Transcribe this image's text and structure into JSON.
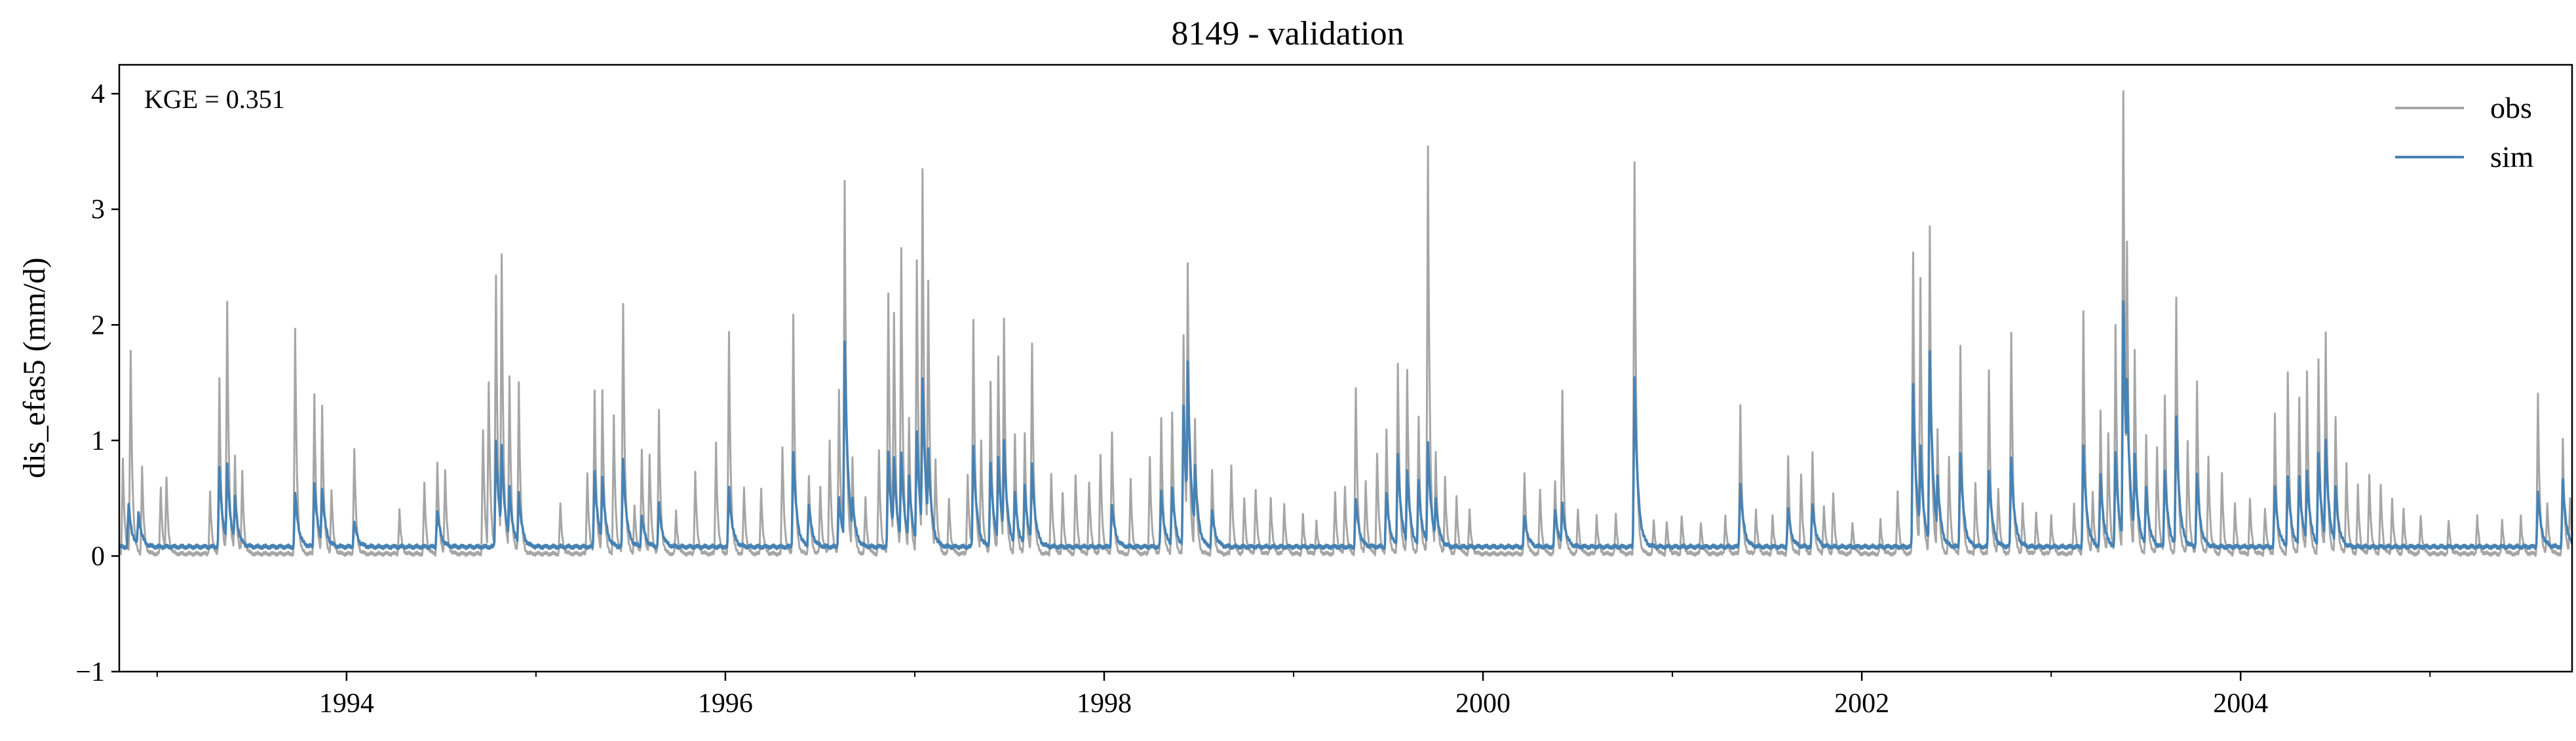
{
  "chart_data": {
    "type": "line",
    "title": "8149 - validation",
    "xlabel": "",
    "ylabel": "dis_efas5 (mm/d)",
    "xlim": [
      1992.8,
      2005.75
    ],
    "ylim": [
      -1,
      4.25
    ],
    "yticks": [
      -1,
      0,
      1,
      2,
      3,
      4
    ],
    "ytick_labels": [
      "−1",
      "0",
      "1",
      "2",
      "3",
      "4"
    ],
    "xticks": [
      1994,
      1996,
      1998,
      2000,
      2002,
      2004
    ],
    "xtick_labels": [
      "1994",
      "1996",
      "1998",
      "2000",
      "2002",
      "2004"
    ],
    "minor_xticks": [
      1993,
      1995,
      1997,
      1999,
      2001,
      2003,
      2005
    ],
    "annotation": "KGE = 0.351",
    "legend": {
      "position": "top-right",
      "entries": [
        "obs",
        "sim"
      ]
    },
    "series": [
      {
        "name": "obs",
        "color": "#a6a6a6",
        "baseline": 0.02,
        "peaks": [
          [
            1992.82,
            0.85
          ],
          [
            1992.86,
            1.78
          ],
          [
            1992.92,
            0.78
          ],
          [
            1993.02,
            0.6
          ],
          [
            1993.05,
            0.68
          ],
          [
            1993.28,
            0.55
          ],
          [
            1993.33,
            1.52
          ],
          [
            1993.37,
            2.18
          ],
          [
            1993.41,
            0.85
          ],
          [
            1993.45,
            0.72
          ],
          [
            1993.73,
            1.97
          ],
          [
            1993.83,
            1.42
          ],
          [
            1993.87,
            1.32
          ],
          [
            1993.92,
            0.58
          ],
          [
            1994.04,
            0.93
          ],
          [
            1994.28,
            0.4
          ],
          [
            1994.41,
            0.62
          ],
          [
            1994.48,
            0.82
          ],
          [
            1994.52,
            0.75
          ],
          [
            1994.72,
            1.1
          ],
          [
            1994.75,
            1.52
          ],
          [
            1994.79,
            2.43
          ],
          [
            1994.82,
            2.6
          ],
          [
            1994.86,
            1.55
          ],
          [
            1994.91,
            1.5
          ],
          [
            1995.13,
            0.45
          ],
          [
            1995.27,
            0.72
          ],
          [
            1995.31,
            1.45
          ],
          [
            1995.35,
            1.45
          ],
          [
            1995.41,
            1.22
          ],
          [
            1995.46,
            2.19
          ],
          [
            1995.52,
            0.45
          ],
          [
            1995.56,
            0.92
          ],
          [
            1995.6,
            0.88
          ],
          [
            1995.65,
            1.25
          ],
          [
            1995.74,
            0.38
          ],
          [
            1995.84,
            0.72
          ],
          [
            1995.95,
            0.98
          ],
          [
            1996.02,
            1.94
          ],
          [
            1996.1,
            0.6
          ],
          [
            1996.19,
            0.6
          ],
          [
            1996.3,
            0.95
          ],
          [
            1996.36,
            2.09
          ],
          [
            1996.44,
            0.7
          ],
          [
            1996.5,
            0.6
          ],
          [
            1996.55,
            1.0
          ],
          [
            1996.6,
            1.43
          ],
          [
            1996.63,
            3.24
          ],
          [
            1996.67,
            0.85
          ],
          [
            1996.74,
            0.5
          ],
          [
            1996.81,
            0.9
          ],
          [
            1996.86,
            2.27
          ],
          [
            1996.89,
            2.1
          ],
          [
            1996.93,
            2.67
          ],
          [
            1996.97,
            1.2
          ],
          [
            1997.01,
            2.56
          ],
          [
            1997.04,
            3.36
          ],
          [
            1997.07,
            2.4
          ],
          [
            1997.11,
            0.85
          ],
          [
            1997.18,
            0.5
          ],
          [
            1997.28,
            0.7
          ],
          [
            1997.31,
            2.04
          ],
          [
            1997.35,
            1.0
          ],
          [
            1997.4,
            1.5
          ],
          [
            1997.44,
            1.72
          ],
          [
            1997.47,
            2.05
          ],
          [
            1997.53,
            1.05
          ],
          [
            1997.58,
            1.05
          ],
          [
            1997.62,
            1.84
          ],
          [
            1997.72,
            0.72
          ],
          [
            1997.78,
            0.55
          ],
          [
            1997.85,
            0.7
          ],
          [
            1997.92,
            0.65
          ],
          [
            1997.98,
            0.88
          ],
          [
            1998.04,
            1.08
          ],
          [
            1998.14,
            0.65
          ],
          [
            1998.24,
            0.85
          ],
          [
            1998.3,
            1.18
          ],
          [
            1998.36,
            1.25
          ],
          [
            1998.42,
            1.91
          ],
          [
            1998.44,
            2.53
          ],
          [
            1998.48,
            1.2
          ],
          [
            1998.57,
            0.75
          ],
          [
            1998.67,
            0.8
          ],
          [
            1998.74,
            0.5
          ],
          [
            1998.8,
            0.58
          ],
          [
            1998.88,
            0.5
          ],
          [
            1998.95,
            0.45
          ],
          [
            1999.05,
            0.35
          ],
          [
            1999.12,
            0.3
          ],
          [
            1999.22,
            0.55
          ],
          [
            1999.27,
            0.6
          ],
          [
            1999.33,
            1.46
          ],
          [
            1999.38,
            0.65
          ],
          [
            1999.44,
            0.9
          ],
          [
            1999.49,
            1.1
          ],
          [
            1999.55,
            1.68
          ],
          [
            1999.6,
            1.62
          ],
          [
            1999.66,
            1.2
          ],
          [
            1999.71,
            3.54
          ],
          [
            1999.75,
            0.9
          ],
          [
            1999.8,
            0.68
          ],
          [
            1999.86,
            0.5
          ],
          [
            1999.93,
            0.4
          ],
          [
            2000.22,
            0.72
          ],
          [
            2000.3,
            0.58
          ],
          [
            2000.38,
            0.65
          ],
          [
            2000.42,
            1.42
          ],
          [
            2000.5,
            0.4
          ],
          [
            2000.6,
            0.35
          ],
          [
            2000.7,
            0.35
          ],
          [
            2000.8,
            3.41
          ],
          [
            2000.9,
            0.3
          ],
          [
            2000.97,
            0.3
          ],
          [
            2001.05,
            0.35
          ],
          [
            2001.15,
            0.3
          ],
          [
            2001.28,
            0.35
          ],
          [
            2001.36,
            1.3
          ],
          [
            2001.44,
            0.4
          ],
          [
            2001.53,
            0.35
          ],
          [
            2001.61,
            0.85
          ],
          [
            2001.68,
            0.72
          ],
          [
            2001.74,
            0.9
          ],
          [
            2001.8,
            0.45
          ],
          [
            2001.85,
            0.55
          ],
          [
            2001.95,
            0.3
          ],
          [
            2002.1,
            0.3
          ],
          [
            2002.19,
            0.55
          ],
          [
            2002.27,
            2.62
          ],
          [
            2002.31,
            2.4
          ],
          [
            2002.36,
            2.86
          ],
          [
            2002.4,
            1.1
          ],
          [
            2002.46,
            0.85
          ],
          [
            2002.52,
            1.83
          ],
          [
            2002.6,
            0.65
          ],
          [
            2002.67,
            1.62
          ],
          [
            2002.72,
            0.6
          ],
          [
            2002.79,
            1.93
          ],
          [
            2002.85,
            0.45
          ],
          [
            2002.92,
            0.38
          ],
          [
            2003.0,
            0.35
          ],
          [
            2003.12,
            0.45
          ],
          [
            2003.17,
            2.11
          ],
          [
            2003.22,
            0.55
          ],
          [
            2003.26,
            1.25
          ],
          [
            2003.3,
            1.05
          ],
          [
            2003.34,
            2.0
          ],
          [
            2003.38,
            4.02
          ],
          [
            2003.4,
            2.74
          ],
          [
            2003.44,
            1.8
          ],
          [
            2003.5,
            1.05
          ],
          [
            2003.56,
            0.95
          ],
          [
            2003.6,
            1.4
          ],
          [
            2003.66,
            2.23
          ],
          [
            2003.72,
            1.0
          ],
          [
            2003.77,
            1.5
          ],
          [
            2003.83,
            0.85
          ],
          [
            2003.9,
            0.7
          ],
          [
            2003.97,
            0.45
          ],
          [
            2004.05,
            0.5
          ],
          [
            2004.13,
            0.42
          ],
          [
            2004.18,
            1.23
          ],
          [
            2004.25,
            1.6
          ],
          [
            2004.31,
            1.38
          ],
          [
            2004.35,
            1.61
          ],
          [
            2004.41,
            1.71
          ],
          [
            2004.45,
            1.93
          ],
          [
            2004.5,
            1.2
          ],
          [
            2004.56,
            0.8
          ],
          [
            2004.62,
            0.6
          ],
          [
            2004.68,
            0.7
          ],
          [
            2004.74,
            0.6
          ],
          [
            2004.8,
            0.5
          ],
          [
            2004.86,
            0.4
          ],
          [
            2004.95,
            0.35
          ],
          [
            2005.1,
            0.3
          ],
          [
            2005.25,
            0.35
          ],
          [
            2005.38,
            0.3
          ],
          [
            2005.48,
            0.35
          ],
          [
            2005.57,
            1.4
          ],
          [
            2005.62,
            0.45
          ],
          [
            2005.7,
            1.0
          ],
          [
            2005.74,
            0.5
          ]
        ]
      },
      {
        "name": "sim",
        "color": "#4682b4",
        "baseline": 0.08,
        "peaks": [
          [
            1992.85,
            0.45
          ],
          [
            1992.9,
            0.38
          ],
          [
            1993.33,
            0.75
          ],
          [
            1993.37,
            0.78
          ],
          [
            1993.41,
            0.5
          ],
          [
            1993.73,
            0.55
          ],
          [
            1993.83,
            0.65
          ],
          [
            1993.87,
            0.6
          ],
          [
            1994.04,
            0.3
          ],
          [
            1994.48,
            0.4
          ],
          [
            1994.79,
            1.0
          ],
          [
            1994.82,
            0.95
          ],
          [
            1994.86,
            0.6
          ],
          [
            1994.91,
            0.55
          ],
          [
            1995.31,
            0.75
          ],
          [
            1995.35,
            0.7
          ],
          [
            1995.46,
            0.85
          ],
          [
            1995.56,
            0.35
          ],
          [
            1995.65,
            0.45
          ],
          [
            1996.02,
            0.6
          ],
          [
            1996.36,
            0.9
          ],
          [
            1996.44,
            0.45
          ],
          [
            1996.6,
            0.5
          ],
          [
            1996.63,
            1.85
          ],
          [
            1996.67,
            0.5
          ],
          [
            1996.86,
            0.9
          ],
          [
            1996.89,
            0.85
          ],
          [
            1996.93,
            0.9
          ],
          [
            1996.97,
            0.7
          ],
          [
            1997.01,
            1.08
          ],
          [
            1997.04,
            1.55
          ],
          [
            1997.07,
            0.95
          ],
          [
            1997.31,
            0.95
          ],
          [
            1997.4,
            0.8
          ],
          [
            1997.44,
            0.85
          ],
          [
            1997.47,
            1.0
          ],
          [
            1997.53,
            0.55
          ],
          [
            1997.58,
            0.6
          ],
          [
            1997.62,
            0.8
          ],
          [
            1998.04,
            0.45
          ],
          [
            1998.3,
            0.55
          ],
          [
            1998.36,
            0.6
          ],
          [
            1998.42,
            1.3
          ],
          [
            1998.44,
            1.68
          ],
          [
            1998.48,
            0.8
          ],
          [
            1998.57,
            0.4
          ],
          [
            1999.33,
            0.5
          ],
          [
            1999.49,
            0.55
          ],
          [
            1999.55,
            0.9
          ],
          [
            1999.6,
            0.75
          ],
          [
            1999.66,
            0.65
          ],
          [
            1999.71,
            0.98
          ],
          [
            1999.75,
            0.5
          ],
          [
            2000.22,
            0.35
          ],
          [
            2000.38,
            0.4
          ],
          [
            2000.42,
            0.45
          ],
          [
            2000.8,
            1.55
          ],
          [
            2001.36,
            0.62
          ],
          [
            2001.61,
            0.4
          ],
          [
            2001.74,
            0.45
          ],
          [
            2002.27,
            1.48
          ],
          [
            2002.31,
            0.95
          ],
          [
            2002.36,
            1.78
          ],
          [
            2002.4,
            0.7
          ],
          [
            2002.52,
            0.9
          ],
          [
            2002.67,
            0.75
          ],
          [
            2002.79,
            0.85
          ],
          [
            2003.17,
            0.95
          ],
          [
            2003.26,
            0.7
          ],
          [
            2003.34,
            0.9
          ],
          [
            2003.38,
            2.2
          ],
          [
            2003.4,
            1.55
          ],
          [
            2003.44,
            0.9
          ],
          [
            2003.5,
            0.6
          ],
          [
            2003.6,
            0.75
          ],
          [
            2003.66,
            1.2
          ],
          [
            2003.77,
            0.7
          ],
          [
            2004.18,
            0.6
          ],
          [
            2004.25,
            0.7
          ],
          [
            2004.31,
            0.7
          ],
          [
            2004.35,
            0.75
          ],
          [
            2004.41,
            0.9
          ],
          [
            2004.45,
            1.0
          ],
          [
            2004.5,
            0.6
          ],
          [
            2005.57,
            0.55
          ],
          [
            2005.7,
            0.65
          ]
        ]
      }
    ]
  }
}
